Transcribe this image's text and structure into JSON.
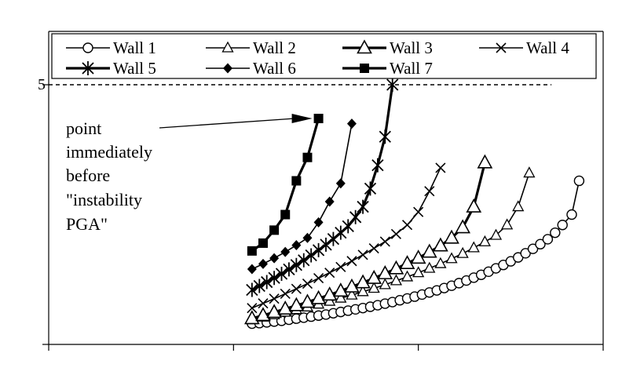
{
  "chart_data": {
    "type": "line",
    "title": "",
    "xlabel": "",
    "ylabel": "",
    "xlim": [
      0,
      3.3
    ],
    "ylim": [
      0,
      1.0
    ],
    "ytick_labels_visible": [
      "5"
    ],
    "grid": false,
    "legend": {
      "placement": "top",
      "columns": 4
    },
    "reference_line": {
      "style": "dashed",
      "y": 1.0
    },
    "annotation": {
      "lines": [
        "point",
        "immediately",
        "before",
        "\"instability",
        "PGA\""
      ],
      "points_to_series": "Wall 7"
    },
    "series": [
      {
        "name": "Wall 1",
        "marker": "circle-open",
        "line": "thin",
        "x": [
          1.1,
          1.14,
          1.18,
          1.22,
          1.26,
          1.3,
          1.34,
          1.38,
          1.42,
          1.46,
          1.5,
          1.54,
          1.58,
          1.62,
          1.66,
          1.7,
          1.74,
          1.78,
          1.82,
          1.86,
          1.9,
          1.94,
          1.98,
          2.02,
          2.06,
          2.1,
          2.14,
          2.18,
          2.22,
          2.26,
          2.3,
          2.34,
          2.38,
          2.42,
          2.46,
          2.5,
          2.54,
          2.58,
          2.62,
          2.66,
          2.7,
          2.74,
          2.78,
          2.83,
          2.87
        ],
        "y": [
          0.08,
          0.082,
          0.085,
          0.088,
          0.091,
          0.095,
          0.099,
          0.103,
          0.107,
          0.111,
          0.115,
          0.12,
          0.125,
          0.13,
          0.135,
          0.14,
          0.145,
          0.151,
          0.157,
          0.163,
          0.17,
          0.177,
          0.184,
          0.192,
          0.2,
          0.208,
          0.217,
          0.226,
          0.236,
          0.246,
          0.257,
          0.268,
          0.28,
          0.293,
          0.306,
          0.32,
          0.335,
          0.351,
          0.368,
          0.386,
          0.405,
          0.43,
          0.46,
          0.5,
          0.63
        ]
      },
      {
        "name": "Wall 2",
        "marker": "triangle-open-small",
        "line": "thin",
        "x": [
          1.1,
          1.16,
          1.22,
          1.28,
          1.34,
          1.4,
          1.46,
          1.52,
          1.58,
          1.64,
          1.7,
          1.76,
          1.82,
          1.88,
          1.94,
          2.0,
          2.06,
          2.12,
          2.18,
          2.24,
          2.3,
          2.36,
          2.42,
          2.48,
          2.54,
          2.6
        ],
        "y": [
          0.095,
          0.105,
          0.114,
          0.124,
          0.134,
          0.144,
          0.155,
          0.166,
          0.178,
          0.19,
          0.203,
          0.216,
          0.23,
          0.245,
          0.26,
          0.276,
          0.293,
          0.311,
          0.33,
          0.35,
          0.372,
          0.395,
          0.42,
          0.46,
          0.53,
          0.66
        ]
      },
      {
        "name": "Wall 3",
        "marker": "triangle-open-large",
        "line": "thick",
        "x": [
          1.1,
          1.16,
          1.22,
          1.28,
          1.34,
          1.4,
          1.46,
          1.52,
          1.58,
          1.64,
          1.7,
          1.76,
          1.82,
          1.88,
          1.94,
          2.0,
          2.06,
          2.12,
          2.18,
          2.24,
          2.3,
          2.36
        ],
        "y": [
          0.1,
          0.112,
          0.124,
          0.137,
          0.15,
          0.163,
          0.177,
          0.191,
          0.206,
          0.222,
          0.238,
          0.255,
          0.273,
          0.292,
          0.312,
          0.333,
          0.356,
          0.38,
          0.41,
          0.45,
          0.53,
          0.7
        ]
      },
      {
        "name": "Wall 4",
        "marker": "x",
        "line": "thin",
        "x": [
          1.1,
          1.16,
          1.22,
          1.28,
          1.34,
          1.4,
          1.46,
          1.52,
          1.58,
          1.64,
          1.7,
          1.76,
          1.82,
          1.88,
          1.94,
          2.0,
          2.06,
          2.12
        ],
        "y": [
          0.14,
          0.158,
          0.176,
          0.195,
          0.214,
          0.234,
          0.255,
          0.276,
          0.298,
          0.321,
          0.345,
          0.37,
          0.396,
          0.425,
          0.46,
          0.51,
          0.59,
          0.68
        ]
      },
      {
        "name": "Wall 5",
        "marker": "asterisk",
        "line": "thick",
        "x": [
          1.1,
          1.14,
          1.18,
          1.22,
          1.26,
          1.3,
          1.34,
          1.38,
          1.42,
          1.46,
          1.5,
          1.54,
          1.58,
          1.62,
          1.66,
          1.7,
          1.74,
          1.78,
          1.82,
          1.86
        ],
        "y": [
          0.21,
          0.225,
          0.24,
          0.256,
          0.272,
          0.289,
          0.306,
          0.324,
          0.343,
          0.363,
          0.384,
          0.406,
          0.43,
          0.455,
          0.49,
          0.53,
          0.6,
          0.69,
          0.8,
          1.0
        ]
      },
      {
        "name": "Wall 6",
        "marker": "diamond-filled",
        "line": "thin",
        "x": [
          1.1,
          1.16,
          1.22,
          1.28,
          1.34,
          1.4,
          1.46,
          1.52,
          1.58,
          1.64
        ],
        "y": [
          0.29,
          0.31,
          0.332,
          0.356,
          0.382,
          0.41,
          0.47,
          0.55,
          0.62,
          0.85
        ]
      },
      {
        "name": "Wall 7",
        "marker": "square-filled",
        "line": "thick",
        "x": [
          1.1,
          1.16,
          1.22,
          1.28,
          1.34,
          1.4,
          1.46
        ],
        "y": [
          0.36,
          0.39,
          0.44,
          0.5,
          0.63,
          0.72,
          0.87
        ]
      }
    ]
  }
}
